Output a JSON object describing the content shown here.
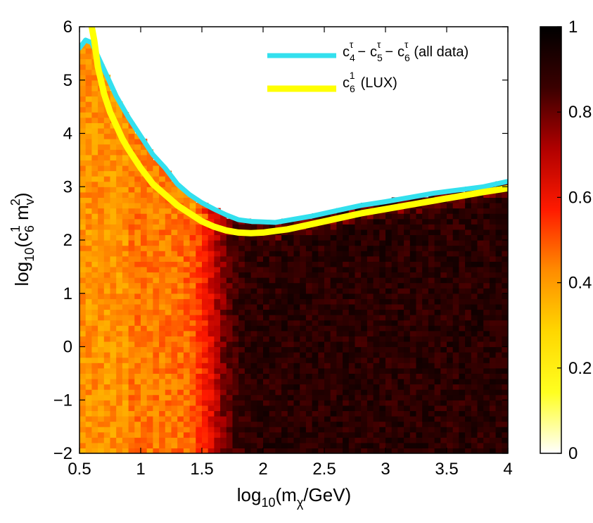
{
  "chart_data": {
    "type": "heatmap",
    "title": "",
    "xlabel": {
      "prefix": "log",
      "sub1": "10",
      "mid": "(m",
      "sub2": "χ",
      "suffix": "/GeV)"
    },
    "ylabel": {
      "prefix": "log",
      "sub1": "10",
      "mid": "(c",
      "sub2": "6",
      "sup2": "1",
      "mid2": " m",
      "sub3": "v",
      "sup3": "2",
      "suffix": ")"
    },
    "xlim": [
      0.5,
      4
    ],
    "ylim": [
      -2,
      6
    ],
    "xticks": [
      0.5,
      1,
      1.5,
      2,
      2.5,
      3,
      3.5,
      4
    ],
    "xtick_labels": [
      "0.5",
      "1",
      "1.5",
      "2",
      "2.5",
      "3",
      "3.5",
      "4"
    ],
    "yticks": [
      -2,
      -1,
      0,
      1,
      2,
      3,
      4,
      5,
      6
    ],
    "ytick_labels": [
      "−2",
      "−1",
      "0",
      "1",
      "2",
      "3",
      "4",
      "5",
      "6"
    ],
    "colorbar": {
      "range": [
        0,
        1
      ],
      "ticks": [
        0,
        0.2,
        0.4,
        0.6,
        0.8,
        1
      ],
      "tick_labels": [
        "0",
        "0.2",
        "0.4",
        "0.6",
        "0.8",
        "1"
      ],
      "colormap": [
        "#ffffff",
        "#ffff20",
        "#ffd700",
        "#ff8c00",
        "#ff1a00",
        "#b00000",
        "#3a0000",
        "#000000"
      ]
    },
    "grid": false,
    "legend_position": "top-right",
    "series": [
      {
        "name": "c4τ − c5τ − c6τ (all data)",
        "legend": {
          "c1": "c",
          "c1sub": "4",
          "c1sup": "τ",
          "c2": "c",
          "c2sub": "5",
          "c2sup": "τ",
          "c3": "c",
          "c3sub": "6",
          "c3sup": "τ",
          "dash": "−",
          "suffix": "(all data)"
        },
        "color": "#33e0ee",
        "type": "line",
        "x": [
          0.5,
          0.55,
          0.6,
          0.65,
          0.7,
          0.75,
          0.8,
          0.9,
          1.0,
          1.1,
          1.2,
          1.3,
          1.4,
          1.5,
          1.6,
          1.7,
          1.8,
          1.9,
          2.0,
          2.1,
          2.2,
          2.4,
          2.6,
          2.8,
          3.0,
          3.2,
          3.4,
          3.6,
          3.8,
          4.0
        ],
        "y": [
          5.6,
          5.75,
          5.7,
          5.45,
          5.2,
          4.95,
          4.7,
          4.3,
          3.95,
          3.6,
          3.35,
          3.05,
          2.85,
          2.7,
          2.58,
          2.47,
          2.38,
          2.35,
          2.34,
          2.33,
          2.37,
          2.45,
          2.55,
          2.65,
          2.72,
          2.8,
          2.88,
          2.94,
          3.0,
          3.1
        ]
      },
      {
        "name": "c61 (LUX)",
        "legend": {
          "c": "c",
          "csub": "6",
          "csup": "1",
          "suffix": "(LUX)"
        },
        "color": "#ffff00",
        "type": "line",
        "x": [
          0.6,
          0.62,
          0.65,
          0.7,
          0.75,
          0.8,
          0.85,
          0.9,
          1.0,
          1.1,
          1.2,
          1.3,
          1.4,
          1.5,
          1.6,
          1.7,
          1.8,
          1.9,
          2.0,
          2.1,
          2.2,
          2.4,
          2.6,
          2.8,
          3.0,
          3.2,
          3.4,
          3.6,
          3.8,
          4.0
        ],
        "y": [
          6.0,
          5.75,
          5.25,
          4.75,
          4.4,
          4.15,
          3.9,
          3.7,
          3.35,
          3.05,
          2.85,
          2.65,
          2.5,
          2.35,
          2.25,
          2.18,
          2.14,
          2.13,
          2.14,
          2.17,
          2.2,
          2.3,
          2.4,
          2.5,
          2.58,
          2.66,
          2.74,
          2.82,
          2.9,
          2.97
        ]
      }
    ],
    "heatmap": {
      "description_rows": "value generally increases with x; left region ~0.45, transitions near x=1.6 to ~0.85-0.95",
      "x_transition": 1.6,
      "low_value": 0.45,
      "high_value": 0.9
    }
  }
}
